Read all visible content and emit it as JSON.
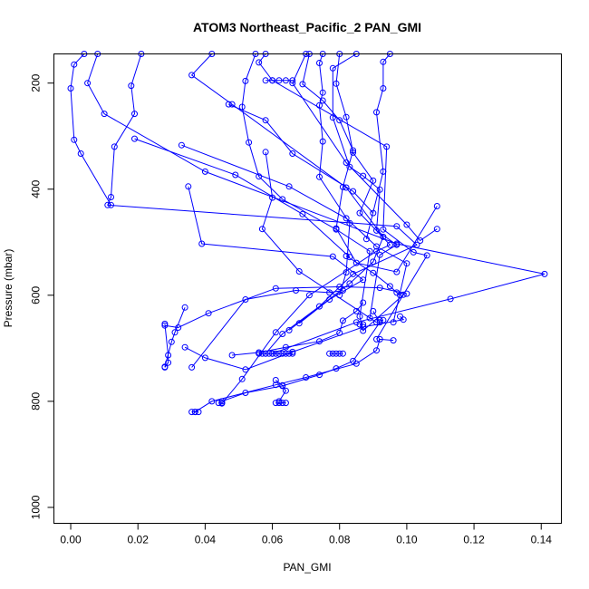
{
  "chart_data": {
    "type": "line",
    "title": "ATOM3 Northeast_Pacific_2 PAN_GMI",
    "xlabel": "PAN_GMI",
    "ylabel": "Pressure (mbar)",
    "xlim": [
      -0.005,
      0.146
    ],
    "ylim": [
      1030,
      145
    ],
    "y_reversed": true,
    "grid": false,
    "x_ticks": [
      {
        "value": 0.0,
        "label": "0.00"
      },
      {
        "value": 0.02,
        "label": "0.02"
      },
      {
        "value": 0.04,
        "label": "0.04"
      },
      {
        "value": 0.06,
        "label": "0.06"
      },
      {
        "value": 0.08,
        "label": "0.08"
      },
      {
        "value": 0.1,
        "label": "0.10"
      },
      {
        "value": 0.12,
        "label": "0.12"
      },
      {
        "value": 0.14,
        "label": "0.14"
      }
    ],
    "y_ticks": [
      {
        "value": 200,
        "label": "200"
      },
      {
        "value": 400,
        "label": "400"
      },
      {
        "value": 600,
        "label": "600"
      },
      {
        "value": 800,
        "label": "800"
      },
      {
        "value": 1000,
        "label": "1000"
      }
    ],
    "series_color": "#0000ff",
    "series": [
      {
        "x": [
          0.004,
          0.001,
          0.0,
          0.001,
          0.003,
          0.012
        ],
        "y": [
          145,
          165,
          210,
          307,
          333,
          430
        ]
      },
      {
        "x": [
          0.008,
          0.005,
          0.01,
          0.04,
          0.097,
          0.141,
          0.113,
          0.085,
          0.06
        ],
        "y": [
          145,
          200,
          258,
          367,
          503,
          560,
          607,
          651,
          710
        ]
      },
      {
        "x": [
          0.021,
          0.018,
          0.019,
          0.013,
          0.012,
          0.011,
          0.097,
          0.103,
          0.084,
          0.074,
          0.063,
          0.058
        ],
        "y": [
          145,
          205,
          258,
          320,
          415,
          430,
          470,
          505,
          560,
          621,
          673,
          710
        ]
      },
      {
        "x": [
          0.042,
          0.036,
          0.048,
          0.082,
          0.093,
          0.09,
          0.083,
          0.065
        ],
        "y": [
          145,
          185,
          240,
          397,
          490,
          537,
          578,
          666
        ]
      },
      {
        "x": [
          0.058,
          0.056,
          0.06,
          0.094,
          0.093,
          0.102,
          0.106,
          0.091
        ],
        "y": [
          145,
          161,
          195,
          320,
          476,
          519,
          525,
          683
        ]
      },
      {
        "x": [
          0.055,
          0.052,
          0.051,
          0.053,
          0.056,
          0.063,
          0.079,
          0.089,
          0.086,
          0.087,
          0.099
        ],
        "y": [
          145,
          196,
          245,
          312,
          376,
          419,
          476,
          517,
          640,
          667,
          599
        ]
      },
      {
        "x": [
          0.075,
          0.074,
          0.075,
          0.074,
          0.075,
          0.074,
          0.083,
          0.082,
          0.08
        ],
        "y": [
          145,
          162,
          218,
          242,
          310,
          377,
          464,
          557,
          600
        ]
      },
      {
        "x": [
          0.08,
          0.079,
          0.082,
          0.084,
          0.09,
          0.086,
          0.095,
          0.091,
          0.071,
          0.061,
          0.051,
          0.045
        ],
        "y": [
          145,
          201,
          264,
          331,
          384,
          445,
          505,
          517,
          600,
          670,
          758,
          804
        ]
      },
      {
        "x": [
          0.095,
          0.093,
          0.093,
          0.091,
          0.093,
          0.088
        ],
        "y": [
          145,
          160,
          210,
          255,
          367,
          494
        ]
      },
      {
        "x": [
          0.085,
          0.078,
          0.078,
          0.083,
          0.087,
          0.092,
          0.091,
          0.097,
          0.092,
          0.089
        ],
        "y": [
          145,
          172,
          265,
          358,
          375,
          401,
          478,
          505,
          524,
          643
        ]
      },
      {
        "x": [
          0.071,
          0.069,
          0.075,
          0.08,
          0.084,
          0.081,
          0.079,
          0.085,
          0.097,
          0.109
        ],
        "y": [
          145,
          202,
          233,
          270,
          327,
          396,
          474,
          539,
          556,
          432
        ]
      },
      {
        "x": [
          0.07,
          0.066,
          0.082,
          0.1,
          0.104,
          0.109
        ],
        "y": [
          145,
          200,
          350,
          467,
          497,
          475
        ]
      },
      {
        "x": [
          0.058,
          0.06,
          0.057,
          0.068,
          0.091
        ],
        "y": [
          330,
          416,
          475,
          555,
          651
        ]
      },
      {
        "x": [
          0.033,
          0.065,
          0.082,
          0.091,
          0.1,
          0.096
        ],
        "y": [
          317,
          395,
          455,
          508,
          540,
          651
        ]
      },
      {
        "x": [
          0.019,
          0.049,
          0.069,
          0.083,
          0.082,
          0.09,
          0.095,
          0.097,
          0.098
        ],
        "y": [
          305,
          373,
          447,
          528,
          526,
          558,
          583,
          595,
          600
        ]
      },
      {
        "x": [
          0.035,
          0.039,
          0.078,
          0.087,
          0.077,
          0.068
        ],
        "y": [
          395,
          503,
          527,
          571,
          608,
          653
        ]
      },
      {
        "x": [
          0.047,
          0.058,
          0.066,
          0.084,
          0.09
        ],
        "y": [
          240,
          270,
          333,
          404,
          445
        ]
      },
      {
        "x": [
          0.028,
          0.032,
          0.041,
          0.061,
          0.08,
          0.092,
          0.1
        ],
        "y": [
          657,
          661,
          634,
          587,
          584,
          586,
          597
        ]
      },
      {
        "x": [
          0.028,
          0.029,
          0.029,
          0.028
        ],
        "y": [
          654,
          713,
          727,
          736
        ]
      },
      {
        "x": [
          0.034,
          0.031,
          0.03,
          0.028
        ],
        "y": [
          623,
          670,
          688,
          735
        ]
      },
      {
        "x": [
          0.036,
          0.052,
          0.067,
          0.077,
          0.081
        ],
        "y": [
          736,
          608,
          591,
          595,
          591
        ]
      },
      {
        "x": [
          0.034,
          0.04,
          0.052,
          0.066,
          0.087,
          0.099,
          0.098
        ],
        "y": [
          698,
          718,
          740,
          707,
          660,
          646,
          640
        ]
      },
      {
        "x": [
          0.037,
          0.042,
          0.061,
          0.07,
          0.085,
          0.091,
          0.092,
          0.096
        ],
        "y": [
          820,
          800,
          769,
          755,
          729,
          704,
          683,
          685
        ]
      },
      {
        "x": [
          0.045,
          0.052,
          0.063,
          0.074,
          0.079,
          0.084,
          0.092,
          0.09
        ],
        "y": [
          800,
          784,
          771,
          750,
          738,
          724,
          651,
          630
        ]
      },
      {
        "x": [
          0.048,
          0.056,
          0.064,
          0.074,
          0.08,
          0.081,
          0.085,
          0.087
        ],
        "y": [
          713,
          708,
          698,
          687,
          671,
          648,
          630,
          614
        ]
      },
      {
        "x": [
          0.061,
          0.063,
          0.064,
          0.062
        ],
        "y": [
          760,
          770,
          780,
          800
        ]
      },
      {
        "x": [
          0.056,
          0.057,
          0.058,
          0.059,
          0.06,
          0.061,
          0.062,
          0.063,
          0.064,
          0.065,
          0.066
        ],
        "y": [
          710,
          710,
          710,
          710,
          710,
          710,
          710,
          710,
          710,
          710,
          710
        ]
      },
      {
        "x": [
          0.036,
          0.037,
          0.038
        ],
        "y": [
          820,
          820,
          820
        ]
      },
      {
        "x": [
          0.044,
          0.045
        ],
        "y": [
          803,
          803
        ]
      },
      {
        "x": [
          0.061,
          0.062,
          0.063,
          0.064
        ],
        "y": [
          803,
          803,
          803,
          803
        ]
      },
      {
        "x": [
          0.077,
          0.078,
          0.079,
          0.08,
          0.081
        ],
        "y": [
          710,
          710,
          710,
          710,
          710
        ]
      },
      {
        "x": [
          0.086,
          0.087
        ],
        "y": [
          655,
          655
        ]
      },
      {
        "x": [
          0.092,
          0.093
        ],
        "y": [
          647,
          647
        ]
      },
      {
        "x": [
          0.058,
          0.06,
          0.062,
          0.064,
          0.066
        ],
        "y": [
          195,
          195,
          195,
          195,
          195
        ]
      }
    ]
  }
}
